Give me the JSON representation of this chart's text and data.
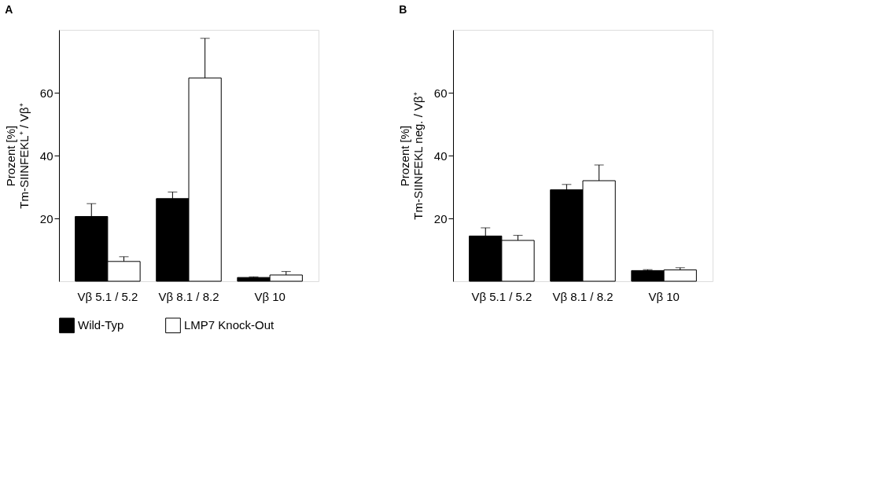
{
  "chart_data": [
    {
      "type": "bar",
      "title": "A",
      "ylabel": "Prozent [%]\nTm-SIINFEKL⁺ / Vβ⁺",
      "categories": [
        "Vβ 5.1 / 5.2",
        "Vβ 8.1 / 8.2",
        "Vβ 10"
      ],
      "ylim": [
        0,
        80
      ],
      "yticks": [
        20,
        40,
        60
      ],
      "grid": false,
      "legend": "bottom",
      "series": [
        {
          "name": "Wild-Typ",
          "color": "#000000",
          "values": [
            20.6,
            26.3,
            1.2
          ],
          "errors": [
            [
              20.6,
              24.7
            ],
            [
              26.3,
              28.4
            ],
            [
              1.2,
              1.4
            ]
          ]
        },
        {
          "name": "LMP7 Knock-Out",
          "color": "#ffffff",
          "values": [
            6.3,
            64.7,
            2.0
          ],
          "errors": [
            [
              6.3,
              7.8
            ],
            [
              64.7,
              77.3
            ],
            [
              2.0,
              3.1
            ]
          ]
        }
      ]
    },
    {
      "type": "bar",
      "title": "B",
      "ylabel": "Prozent [%]\nTm-SIINFEKL neg. / Vβ⁺",
      "categories": [
        "Vβ 5.1 / 5.2",
        "Vβ 8.1 / 8.2",
        "Vβ 10"
      ],
      "ylim": [
        0,
        80
      ],
      "yticks": [
        20,
        40,
        60
      ],
      "grid": false,
      "legend": "bottom",
      "series": [
        {
          "name": "Wild-Typ",
          "color": "#000000",
          "values": [
            14.4,
            29.1,
            3.4
          ],
          "errors": [
            [
              14.4,
              17.0
            ],
            [
              29.1,
              30.8
            ],
            [
              3.4,
              3.7
            ]
          ]
        },
        {
          "name": "LMP7 Knock-Out",
          "color": "#ffffff",
          "values": [
            13.0,
            32.0,
            3.6
          ],
          "errors": [
            [
              13.0,
              14.6
            ],
            [
              32.0,
              37.0
            ],
            [
              3.6,
              4.3
            ]
          ]
        }
      ]
    }
  ]
}
